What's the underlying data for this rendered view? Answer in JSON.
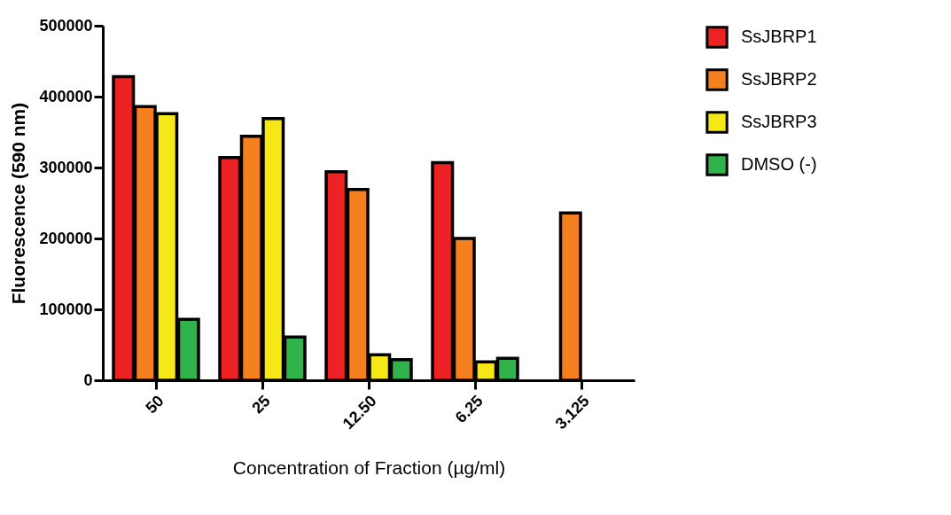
{
  "chart_data": {
    "type": "bar",
    "xlabel": "Concentration of Fraction (µg/ml)",
    "ylabel": "Fluorescence (590 nm)",
    "categories": [
      "50",
      "25",
      "12.50",
      "6.25",
      "3.125"
    ],
    "series": [
      {
        "name": "SsJBRP1",
        "color": "#ed2224",
        "values": [
          428000,
          314000,
          294000,
          307000,
          null
        ]
      },
      {
        "name": "SsJBRP2",
        "color": "#f58020",
        "values": [
          386000,
          344000,
          269000,
          200000,
          236000
        ]
      },
      {
        "name": "SsJBRP3",
        "color": "#f5e816",
        "values": [
          376000,
          369000,
          36000,
          26000,
          null
        ]
      },
      {
        "name": "DMSO (-)",
        "color": "#2fb34a",
        "values": [
          86000,
          61000,
          29000,
          31000,
          null
        ]
      }
    ],
    "ylim": [
      0,
      500000
    ],
    "yticks": [
      0,
      100000,
      200000,
      300000,
      400000,
      500000
    ],
    "grid": false,
    "legend": "top right"
  }
}
